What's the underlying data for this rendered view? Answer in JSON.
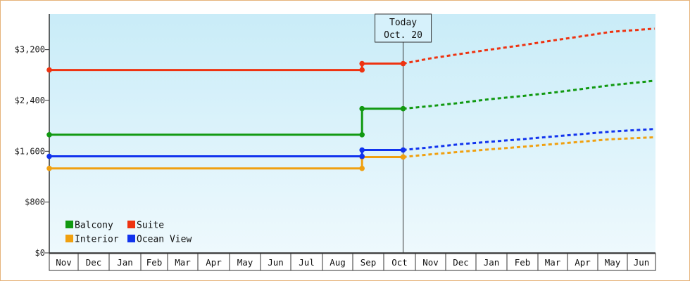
{
  "chart_data": {
    "type": "line",
    "y_axis": {
      "ticks": [
        0,
        800,
        1600,
        2400,
        3200
      ],
      "tick_labels": [
        "$0",
        "$800",
        "$1,600",
        "$2,400",
        "$3,200"
      ],
      "ylim": [
        0,
        3760
      ]
    },
    "x_axis": {
      "month_labels": [
        "Nov",
        "Dec",
        "Jan",
        "Feb",
        "Mar",
        "Apr",
        "May",
        "Jun",
        "Jul",
        "Aug",
        "Sep",
        "Oct",
        "Nov",
        "Dec",
        "Jan",
        "Feb",
        "Mar",
        "Apr",
        "May",
        "Jun"
      ]
    },
    "today": {
      "line1": "Today",
      "line2": "Oct. 20"
    },
    "grid": false,
    "legend_position": "bottom-left",
    "series": [
      {
        "name": "Balcony",
        "color": "#119911",
        "actual": [
          [
            "Nov 1",
            1860
          ],
          [
            "Sep 10",
            1860
          ],
          [
            "Sep 10",
            2270
          ],
          [
            "Oct 20",
            2270
          ]
        ],
        "forecast": [
          [
            "Oct 20",
            2270
          ],
          [
            "Nov 15",
            2310
          ],
          [
            "Dec 15",
            2360
          ],
          [
            "Jan 15",
            2420
          ],
          [
            "Feb 15",
            2470
          ],
          [
            "Mar 15",
            2520
          ],
          [
            "Apr 15",
            2580
          ],
          [
            "May 15",
            2640
          ],
          [
            "Jun 30",
            2710
          ]
        ]
      },
      {
        "name": "Suite",
        "color": "#ee3311",
        "actual": [
          [
            "Nov 1",
            2880
          ],
          [
            "Sep 10",
            2880
          ],
          [
            "Sep 10",
            2980
          ],
          [
            "Oct 20",
            2980
          ]
        ],
        "forecast": [
          [
            "Oct 20",
            2980
          ],
          [
            "Nov 15",
            3060
          ],
          [
            "Dec 15",
            3130
          ],
          [
            "Jan 15",
            3200
          ],
          [
            "Feb 15",
            3270
          ],
          [
            "Mar 15",
            3340
          ],
          [
            "Apr 15",
            3410
          ],
          [
            "May 15",
            3480
          ],
          [
            "Jun 30",
            3530
          ]
        ]
      },
      {
        "name": "Interior",
        "color": "#f0a010",
        "actual": [
          [
            "Nov 1",
            1330
          ],
          [
            "Sep 10",
            1330
          ],
          [
            "Sep 10",
            1510
          ],
          [
            "Oct 20",
            1510
          ]
        ],
        "forecast": [
          [
            "Oct 20",
            1510
          ],
          [
            "Nov 15",
            1550
          ],
          [
            "Dec 15",
            1590
          ],
          [
            "Jan 15",
            1630
          ],
          [
            "Feb 15",
            1670
          ],
          [
            "Mar 15",
            1710
          ],
          [
            "Apr 15",
            1750
          ],
          [
            "May 15",
            1790
          ],
          [
            "Jun 30",
            1820
          ]
        ]
      },
      {
        "name": "Ocean View",
        "color": "#1133ee",
        "actual": [
          [
            "Nov 1",
            1520
          ],
          [
            "Sep 10",
            1520
          ],
          [
            "Sep 10",
            1620
          ],
          [
            "Oct 20",
            1620
          ]
        ],
        "forecast": [
          [
            "Oct 20",
            1620
          ],
          [
            "Nov 15",
            1660
          ],
          [
            "Dec 15",
            1710
          ],
          [
            "Jan 15",
            1750
          ],
          [
            "Feb 15",
            1790
          ],
          [
            "Mar 15",
            1830
          ],
          [
            "Apr 15",
            1870
          ],
          [
            "May 15",
            1910
          ],
          [
            "Jun 30",
            1950
          ]
        ]
      }
    ],
    "legend_order": [
      "Balcony",
      "Suite",
      "Interior",
      "Ocean View"
    ]
  }
}
